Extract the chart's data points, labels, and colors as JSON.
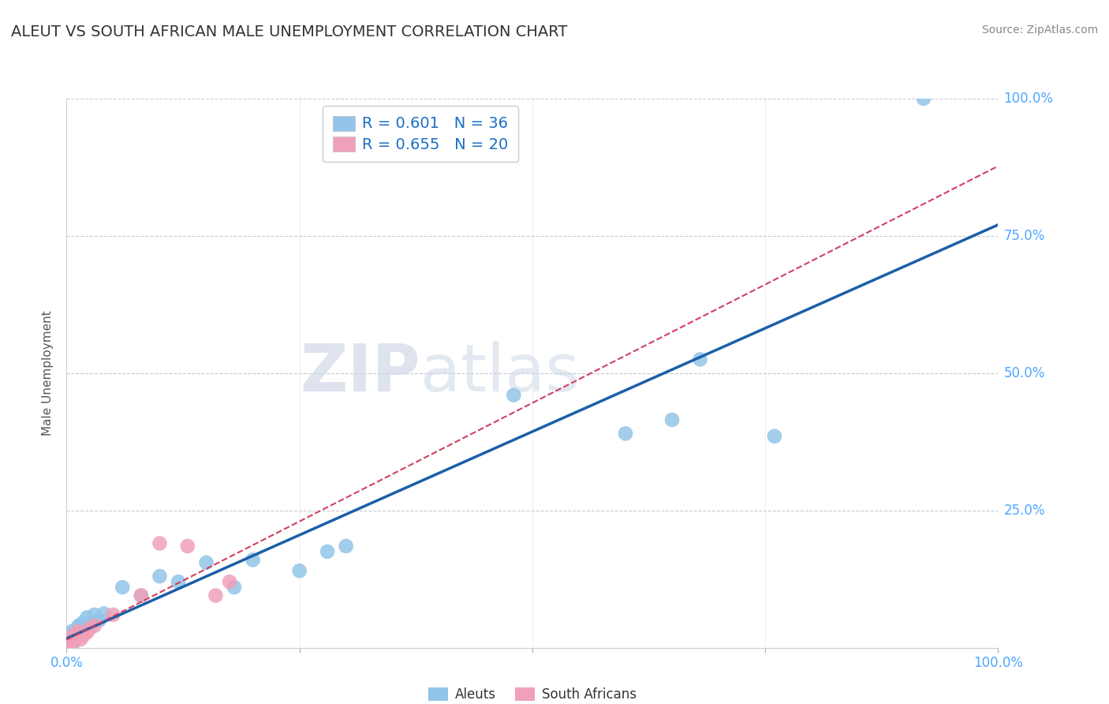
{
  "title": "ALEUT VS SOUTH AFRICAN MALE UNEMPLOYMENT CORRELATION CHART",
  "source": "Source: ZipAtlas.com",
  "ylabel": "Male Unemployment",
  "xlim": [
    0,
    1.0
  ],
  "ylim": [
    0,
    1.0
  ],
  "aleut_color": "#92c5e8",
  "sa_color": "#f0a0b8",
  "aleut_line_color": "#1a5fa8",
  "sa_line_color": "#d04060",
  "aleut_R": 0.601,
  "aleut_N": 36,
  "sa_R": 0.655,
  "sa_N": 20,
  "watermark_zip": "ZIP",
  "watermark_atlas": "atlas",
  "title_color": "#333333",
  "grid_color": "#c8c8d8",
  "tick_color": "#4da6ff",
  "legend_R_color": "#1a6fc4",
  "background_color": "#ffffff",
  "aleuts_x": [
    0.002,
    0.003,
    0.004,
    0.005,
    0.006,
    0.007,
    0.008,
    0.009,
    0.01,
    0.011,
    0.012,
    0.013,
    0.015,
    0.017,
    0.02,
    0.022,
    0.025,
    0.03,
    0.035,
    0.04,
    0.06,
    0.08,
    0.1,
    0.12,
    0.15,
    0.18,
    0.2,
    0.25,
    0.28,
    0.3,
    0.48,
    0.6,
    0.65,
    0.68,
    0.76,
    0.92
  ],
  "aleuts_y": [
    0.01,
    0.015,
    0.02,
    0.025,
    0.03,
    0.008,
    0.012,
    0.018,
    0.022,
    0.028,
    0.035,
    0.04,
    0.032,
    0.045,
    0.038,
    0.055,
    0.042,
    0.06,
    0.05,
    0.062,
    0.11,
    0.095,
    0.13,
    0.12,
    0.155,
    0.11,
    0.16,
    0.14,
    0.175,
    0.185,
    0.46,
    0.39,
    0.415,
    0.525,
    0.385,
    1.0
  ],
  "sa_x": [
    0.002,
    0.003,
    0.004,
    0.005,
    0.006,
    0.007,
    0.008,
    0.01,
    0.012,
    0.015,
    0.018,
    0.022,
    0.025,
    0.03,
    0.05,
    0.08,
    0.1,
    0.13,
    0.16,
    0.175
  ],
  "sa_y": [
    0.005,
    0.01,
    0.015,
    0.02,
    0.008,
    0.012,
    0.018,
    0.025,
    0.03,
    0.015,
    0.022,
    0.028,
    0.035,
    0.04,
    0.06,
    0.095,
    0.19,
    0.185,
    0.095,
    0.12
  ]
}
